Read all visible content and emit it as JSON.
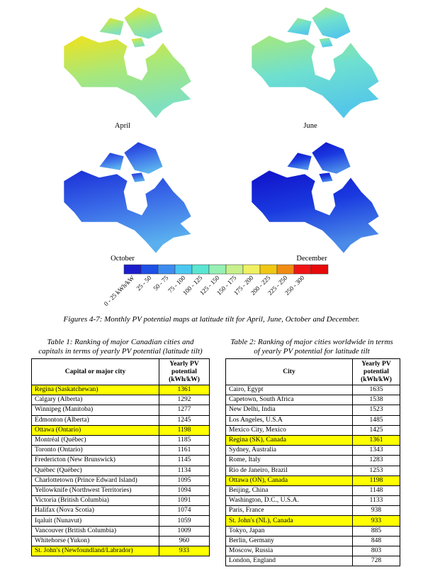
{
  "maps": [
    {
      "label": "April",
      "colors": [
        "#f2e21a",
        "#a8e87a",
        "#7fe0c0"
      ]
    },
    {
      "label": "June",
      "colors": [
        "#a8e87a",
        "#6fe0cf",
        "#55c8e8"
      ]
    },
    {
      "label": "October",
      "colors": [
        "#1a2fd8",
        "#3a6be8",
        "#5ab0ee"
      ]
    },
    {
      "label": "December",
      "colors": [
        "#1010c8",
        "#1a3ae0",
        "#4a8ae8"
      ]
    }
  ],
  "legend": [
    {
      "label": "0 - 25 kWh/kW",
      "color": "#1c1ccc"
    },
    {
      "label": "25 - 50",
      "color": "#1e50e6"
    },
    {
      "label": "50 - 75",
      "color": "#3c8cf0"
    },
    {
      "label": "75 - 100",
      "color": "#4cc8f0"
    },
    {
      "label": "100 - 125",
      "color": "#5ae6d2"
    },
    {
      "label": "125 - 150",
      "color": "#96f0b4"
    },
    {
      "label": "150 - 175",
      "color": "#c8f08c"
    },
    {
      "label": "175 - 200",
      "color": "#f0f064"
    },
    {
      "label": "200 - 225",
      "color": "#f0c814"
    },
    {
      "label": "225 - 250",
      "color": "#f08c14"
    },
    {
      "label": "250 - 300",
      "color": "#f01414"
    },
    {
      "label": "",
      "color": "#e60a0a"
    }
  ],
  "caption": "Figures 4-7: Monthly PV potential maps at latitude tilt for April, June, October and December.",
  "highlight_color": "#ffff00",
  "table1": {
    "caption": [
      "Table 1: Ranking of major Canadian cities and",
      "capitals  in terms of yearly PV potential (latitude tilt)"
    ],
    "headers": [
      "Capital or major city",
      [
        "Yearly PV",
        "potential",
        "(kWh/kW)"
      ]
    ],
    "rows": [
      {
        "name": "Regina  (Saskatchewan)",
        "value": "1361",
        "highlight": true
      },
      {
        "name": "Calgary (Alberta)",
        "value": "1292",
        "highlight": false
      },
      {
        "name": "Winnipeg (Manitoba)",
        "value": "1277",
        "highlight": false
      },
      {
        "name": "Edmonton (Alberta)",
        "value": "1245",
        "highlight": false
      },
      {
        "name": "Ottawa (Ontario)",
        "value": "1198",
        "highlight": true
      },
      {
        "name": "Montréal (Québec)",
        "value": "1185",
        "highlight": false
      },
      {
        "name": "Toronto (Ontario)",
        "value": "1161",
        "highlight": false
      },
      {
        "name": "Fredericton (New Brunswick)",
        "value": "1145",
        "highlight": false
      },
      {
        "name": "Québec (Québec)",
        "value": "1134",
        "highlight": false
      },
      {
        "name": "Charlottetown (Prince Edward Island)",
        "value": "1095",
        "highlight": false
      },
      {
        "name": "Yellowknife (Northwest Territories)",
        "value": "1094",
        "highlight": false
      },
      {
        "name": "Victoria (British Columbia)",
        "value": "1091",
        "highlight": false
      },
      {
        "name": "Halifax (Nova Scotia)",
        "value": "1074",
        "highlight": false
      },
      {
        "name": "Iqaluit (Nunavut)",
        "value": "1059",
        "highlight": false
      },
      {
        "name": "Vancouver (British Columbia)",
        "value": "1009",
        "highlight": false
      },
      {
        "name": "Whitehorse (Yukon)",
        "value": "960",
        "highlight": false
      },
      {
        "name": "St. John's (Newfoundland/Labrador)",
        "value": "933",
        "highlight": true
      }
    ]
  },
  "table2": {
    "caption": [
      "Table 2: Ranking of major cities worldwide in terms",
      "of yearly PV potential for latitude tilt"
    ],
    "headers": [
      "City",
      [
        "Yearly PV",
        "potential",
        "(kWh/kW)"
      ]
    ],
    "rows": [
      {
        "name": "Cairo, Egypt",
        "value": "1635",
        "highlight": false
      },
      {
        "name": "Capetown, South Africa",
        "value": "1538",
        "highlight": false
      },
      {
        "name": "New Delhi, India",
        "value": "1523",
        "highlight": false
      },
      {
        "name": "Los Angeles, U.S.A",
        "value": "1485",
        "highlight": false
      },
      {
        "name": "Mexico City, Mexico",
        "value": "1425",
        "highlight": false
      },
      {
        "name": "Regina (SK), Canada",
        "value": "1361",
        "highlight": true
      },
      {
        "name": "Sydney, Australia",
        "value": "1343",
        "highlight": false
      },
      {
        "name": "Rome, Italy",
        "value": "1283",
        "highlight": false
      },
      {
        "name": "Rio de Janeiro, Brazil",
        "value": "1253",
        "highlight": false
      },
      {
        "name": "Ottawa (ON), Canada",
        "value": "1198",
        "highlight": true
      },
      {
        "name": "Beijing, China",
        "value": "1148",
        "highlight": false
      },
      {
        "name": "Washington, D.C., U.S.A.",
        "value": "1133",
        "highlight": false
      },
      {
        "name": "Paris, France",
        "value": "938",
        "highlight": false
      },
      {
        "name": "St. John's (NL), Canada",
        "value": "933",
        "highlight": true
      },
      {
        "name": "Tokyo, Japan",
        "value": "885",
        "highlight": false
      },
      {
        "name": "Berlin, Germany",
        "value": "848",
        "highlight": false
      },
      {
        "name": "Moscow, Russia",
        "value": "803",
        "highlight": false
      },
      {
        "name": "London, England",
        "value": "728",
        "highlight": false
      }
    ]
  }
}
